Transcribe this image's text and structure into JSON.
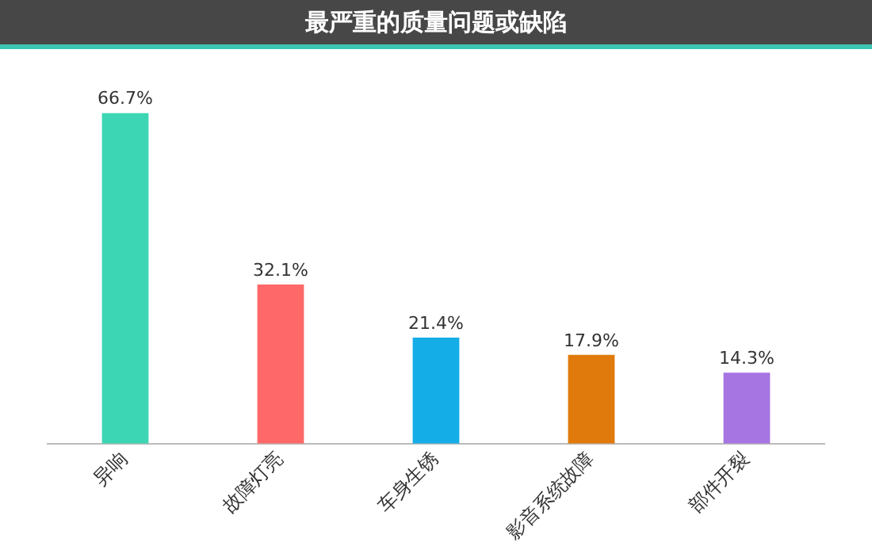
{
  "chart_data": {
    "type": "bar",
    "title": "最严重的质量问题或缺陷",
    "categories": [
      "异响",
      "故障灯亮",
      "车身生锈",
      "影音系统故障",
      "部件开裂"
    ],
    "values": [
      66.7,
      32.1,
      21.4,
      17.9,
      14.3
    ],
    "colors": [
      "#3dd6b5",
      "#fe6868",
      "#14ade8",
      "#e07a0c",
      "#a675e2"
    ],
    "value_labels": [
      "66.7%",
      "32.1%",
      "21.4%",
      "17.9%",
      "14.3%"
    ],
    "grid": false,
    "legend": false
  }
}
